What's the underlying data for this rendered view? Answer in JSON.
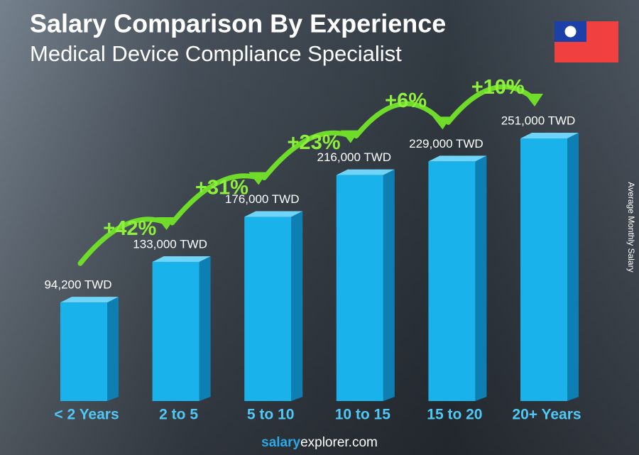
{
  "chart_data": {
    "type": "bar",
    "title": "Salary Comparison By Experience",
    "subtitle": "Medical Device Compliance Specialist",
    "y_axis_label": "Average Monthly Salary",
    "categories": [
      "< 2 Years",
      "2 to 5",
      "5 to 10",
      "10 to 15",
      "15 to 20",
      "20+ Years"
    ],
    "values": [
      94200,
      133000,
      176000,
      216000,
      229000,
      251000
    ],
    "value_labels": [
      "94,200 TWD",
      "133,000 TWD",
      "176,000 TWD",
      "216,000 TWD",
      "229,000 TWD",
      "251,000 TWD"
    ],
    "annotations": [
      "+42%",
      "+31%",
      "+23%",
      "+6%",
      "+10%"
    ],
    "color": "#1ab2ea",
    "footer": [
      "salary",
      "explorer.com"
    ]
  }
}
